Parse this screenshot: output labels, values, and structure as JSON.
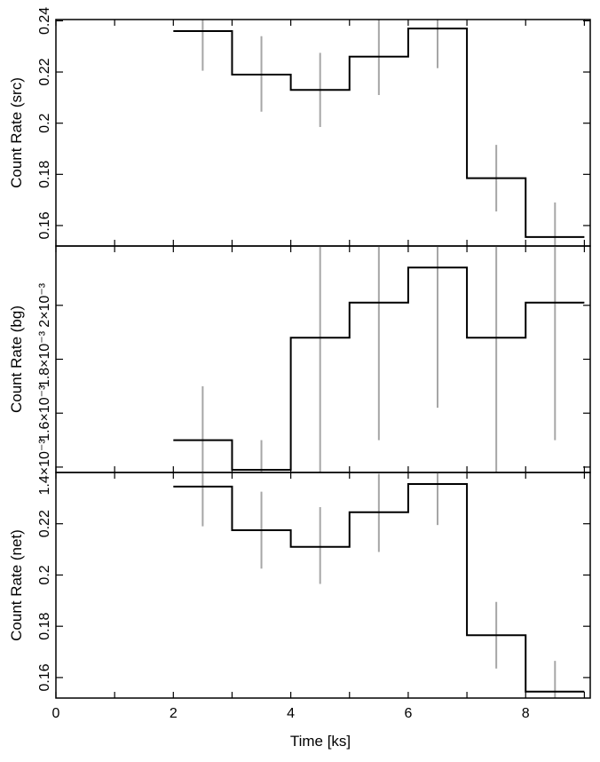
{
  "chart_data": [
    {
      "type": "line",
      "panel": "src",
      "ylabel": "Count Rate (src)",
      "ylim": [
        0.152,
        0.2405
      ],
      "yticks": [
        0.16,
        0.18,
        0.2,
        0.22,
        0.24
      ],
      "ytick_labels": [
        "0.16",
        "0.18",
        "0.2",
        "0.22",
        "0.24"
      ],
      "series": [
        {
          "style": "step",
          "bin_edges": [
            2,
            3,
            4,
            5,
            6,
            7,
            8,
            9
          ],
          "values": [
            0.236,
            0.219,
            0.213,
            0.226,
            0.237,
            0.1785,
            0.1555
          ],
          "error_bar_x": [
            2.5,
            3.5,
            4.5,
            5.5,
            6.5,
            7.5,
            8.5
          ],
          "error_bar_low": [
            0.2205,
            0.2045,
            0.1985,
            0.211,
            0.2215,
            0.1655,
            0.1515
          ],
          "error_bar_high": [
            0.2515,
            0.234,
            0.2275,
            0.241,
            0.2525,
            0.1915,
            0.169
          ]
        }
      ]
    },
    {
      "type": "line",
      "panel": "bg",
      "ylabel": "Count Rate (bg)",
      "ylim": [
        0.00138,
        0.00222
      ],
      "yticks": [
        0.0014,
        0.0016,
        0.0018,
        0.002
      ],
      "ytick_labels": [
        "1.4×10⁻³",
        "1.6×10⁻³",
        "1.8×10⁻³",
        "2×10⁻³"
      ],
      "series": [
        {
          "style": "step",
          "bin_edges": [
            2,
            3,
            4,
            5,
            6,
            7,
            8,
            9
          ],
          "values": [
            0.0015,
            0.00139,
            0.00188,
            0.00201,
            0.00214,
            0.00188,
            0.00201
          ],
          "error_bar_x": [
            2.5,
            3.5,
            4.5,
            5.5,
            6.5,
            7.5,
            8.5
          ],
          "error_bar_low": [
            0.0013,
            0.00128,
            0.00138,
            0.0015,
            0.00162,
            0.00138,
            0.0015
          ],
          "error_bar_high": [
            0.0017,
            0.0015,
            0.00238,
            0.00252,
            0.00266,
            0.00238,
            0.00252
          ]
        }
      ]
    },
    {
      "type": "line",
      "panel": "net",
      "ylabel": "Count Rate (net)",
      "ylim": [
        0.152,
        0.24
      ],
      "yticks": [
        0.16,
        0.18,
        0.2,
        0.22
      ],
      "ytick_labels": [
        "0.16",
        "0.18",
        "0.2",
        "0.22"
      ],
      "series": [
        {
          "style": "step",
          "bin_edges": [
            2,
            3,
            4,
            5,
            6,
            7,
            8,
            9
          ],
          "values": [
            0.2345,
            0.2175,
            0.211,
            0.2245,
            0.2355,
            0.1765,
            0.1545
          ],
          "error_bar_x": [
            2.5,
            3.5,
            4.5,
            5.5,
            6.5,
            7.5,
            8.5
          ],
          "error_bar_low": [
            0.219,
            0.2025,
            0.1965,
            0.209,
            0.2195,
            0.1635,
            0.1495
          ],
          "error_bar_high": [
            0.25,
            0.2325,
            0.2265,
            0.2395,
            0.2515,
            0.1895,
            0.1665
          ]
        }
      ]
    }
  ],
  "x_axis": {
    "label": "Time [ks]",
    "xlim": [
      0,
      9.1
    ],
    "ticks": [
      0,
      2,
      4,
      6,
      8
    ],
    "tick_labels": [
      "0",
      "2",
      "4",
      "6",
      "8"
    ],
    "minor_ticks": [
      1,
      3,
      5,
      7,
      9
    ]
  },
  "colors": {
    "step_line": "#000000",
    "error_bar": "#a6a6a6",
    "axes": "#000000"
  }
}
